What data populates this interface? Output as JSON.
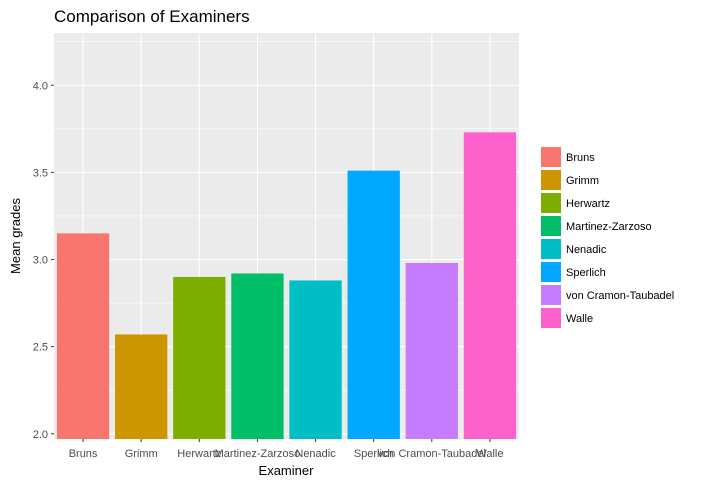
{
  "chart_data": {
    "type": "bar",
    "title": "Comparison of Examiners",
    "xlabel": "Examiner",
    "ylabel": "Mean grades",
    "categories": [
      "Bruns",
      "Grimm",
      "Herwartz",
      "Martinez-Zarzoso",
      "Nenadic",
      "Sperlich",
      "von Cramon-Taubadel",
      "Walle"
    ],
    "values": [
      3.15,
      2.57,
      2.9,
      2.92,
      2.88,
      3.51,
      2.98,
      3.73
    ],
    "colors": [
      "#F8766D",
      "#CD9600",
      "#7CAE00",
      "#00BE67",
      "#00BFC4",
      "#00A9FF",
      "#C77CFF",
      "#FF61CC"
    ],
    "ylim": [
      1.97,
      4.3
    ],
    "yticks": [
      2.0,
      2.5,
      3.0,
      3.5,
      4.0
    ],
    "ytick_labels": [
      "2.0",
      "2.5",
      "3.0",
      "3.5",
      "4.0"
    ],
    "grid": true,
    "panel_background": "#EBEBEB",
    "legend": {
      "position": "right",
      "entries": [
        "Bruns",
        "Grimm",
        "Herwartz",
        "Martinez-Zarzoso",
        "Nenadic",
        "Sperlich",
        "von Cramon-Taubadel",
        "Walle"
      ]
    }
  }
}
